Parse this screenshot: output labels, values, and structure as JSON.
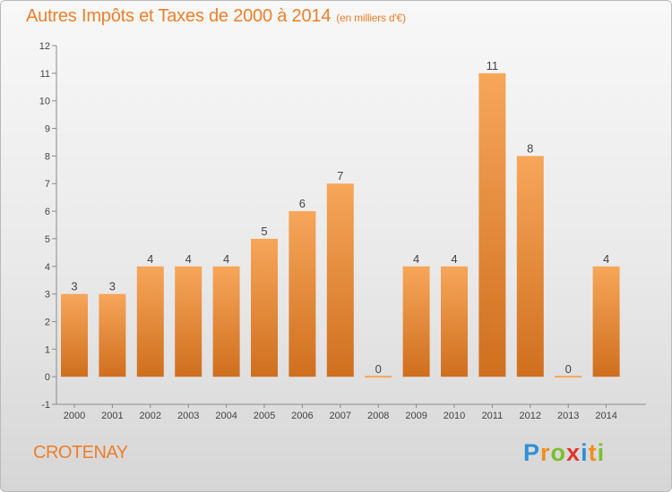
{
  "header": {
    "title": "Autres Impôts et Taxes de 2000 à 2014",
    "subtitle": "(en milliers d'€)"
  },
  "footer": {
    "commune": "CROTENAY",
    "logo_letters": [
      {
        "char": "P",
        "color": "#2f8fd6"
      },
      {
        "char": "r",
        "color": "#ef8f1f"
      },
      {
        "char": "o",
        "color": "#7bbf2a"
      },
      {
        "char": "x",
        "color": "#e0342b"
      },
      {
        "char": "i",
        "color": "#2f8fd6"
      },
      {
        "char": "t",
        "color": "#ef8f1f"
      },
      {
        "char": "i",
        "color": "#7bbf2a"
      }
    ]
  },
  "colors": {
    "accent": "#ee7f2a",
    "bar_top": "#f7a65a",
    "bar_bottom": "#cf6f1e"
  },
  "chart_data": {
    "type": "bar",
    "title": "Autres Impôts et Taxes de 2000 à 2014",
    "subtitle": "(en milliers d'€)",
    "xlabel": "",
    "ylabel": "",
    "categories": [
      "2000",
      "2001",
      "2002",
      "2003",
      "2004",
      "2005",
      "2006",
      "2007",
      "2008",
      "2009",
      "2010",
      "2011",
      "2012",
      "2013",
      "2014"
    ],
    "values": [
      3,
      3,
      4,
      4,
      4,
      5,
      6,
      7,
      0,
      4,
      4,
      11,
      8,
      0,
      4
    ],
    "value_labels": [
      "3",
      "3",
      "4",
      "4",
      "4",
      "5",
      "6",
      "7",
      "0",
      "4",
      "4",
      "11",
      "8",
      "0",
      "4"
    ],
    "ylim": [
      -1,
      12
    ],
    "yticks": [
      "-1",
      "0",
      "1",
      "2",
      "3",
      "4",
      "5",
      "6",
      "7",
      "8",
      "9",
      "10",
      "11",
      "12"
    ],
    "grid": false,
    "legend": "none"
  }
}
